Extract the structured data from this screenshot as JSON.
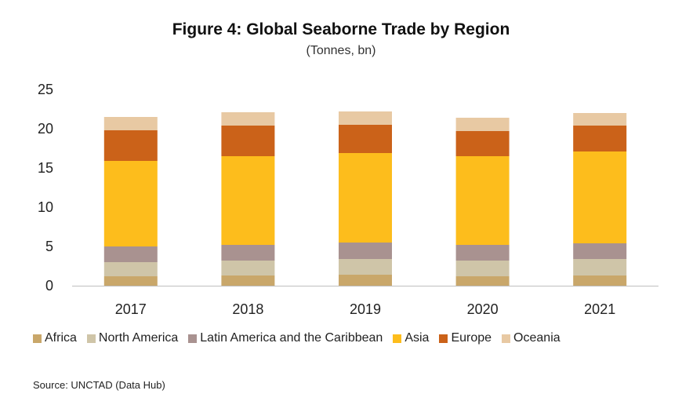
{
  "chart_data": {
    "type": "bar",
    "stacked": true,
    "title": "Figure 4:  Global Seaborne Trade by Region",
    "subtitle": "(Tonnes, bn)",
    "categories": [
      "2017",
      "2018",
      "2019",
      "2020",
      "2021"
    ],
    "ylim": [
      0,
      25
    ],
    "yticks": [
      0,
      5,
      10,
      15,
      20,
      25
    ],
    "grid": false,
    "legend_position": "bottom",
    "series": [
      {
        "name": "Africa",
        "color": "#c9a76a",
        "values": [
          1.2,
          1.3,
          1.4,
          1.2,
          1.3
        ]
      },
      {
        "name": "North America",
        "color": "#cfc5a8",
        "values": [
          1.8,
          1.9,
          2.0,
          2.0,
          2.1
        ]
      },
      {
        "name": "Latin America and the Caribbean",
        "color": "#a99290",
        "values": [
          2.0,
          2.0,
          2.1,
          2.0,
          2.0
        ]
      },
      {
        "name": "Asia",
        "color": "#fdbd1c",
        "values": [
          10.9,
          11.3,
          11.4,
          11.3,
          11.7
        ]
      },
      {
        "name": "Europe",
        "color": "#cb6219",
        "values": [
          3.9,
          3.9,
          3.6,
          3.2,
          3.3
        ]
      },
      {
        "name": "Oceania",
        "color": "#e8c9a3",
        "values": [
          1.7,
          1.7,
          1.7,
          1.7,
          1.6
        ]
      }
    ]
  },
  "source": "Source: UNCTAD (Data Hub)"
}
